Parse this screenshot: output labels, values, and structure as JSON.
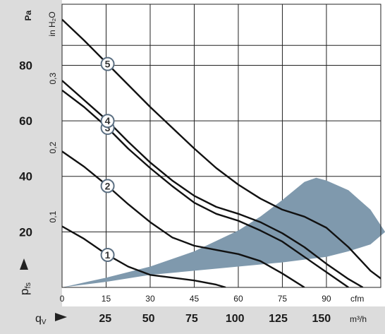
{
  "chart_data": {
    "type": "line",
    "title": "",
    "xlabel": "q_V",
    "ylabel": "p_fs",
    "units": {
      "pressure_left": "Pa",
      "pressure_inner": "in H₂O",
      "flow_inner": "cfm",
      "flow_bottom": "m³/h"
    },
    "xlim_cfm": [
      0,
      108.5
    ],
    "ylim_pa": [
      0,
      102
    ],
    "y_ticks_pa": [
      "20",
      "40",
      "60",
      "80"
    ],
    "y_ticks_inh2o": [
      "0,1",
      "0,2",
      "0,3"
    ],
    "x_ticks_cfm": [
      "0",
      "15",
      "30",
      "45",
      "60",
      "75",
      "90"
    ],
    "x_ticks_m3h": [
      "25",
      "50",
      "75",
      "100",
      "125",
      "150"
    ],
    "grid": true,
    "series": [
      {
        "name": "1",
        "x": [
          0,
          7.5,
          15,
          22.5,
          30,
          37.5,
          45,
          52.5,
          55.7
        ],
        "y": [
          22,
          17.5,
          12,
          7.5,
          4.5,
          3.5,
          2.5,
          1,
          0
        ]
      },
      {
        "name": "2",
        "x": [
          0,
          7.5,
          15,
          22.5,
          30,
          37.5,
          45,
          52.5,
          60,
          67.5,
          75,
          82.5
        ],
        "y": [
          49,
          43.5,
          37,
          30,
          23.5,
          18,
          15,
          13.5,
          12,
          9.5,
          5,
          0
        ]
      },
      {
        "name": "3",
        "x": [
          0,
          7.5,
          15,
          22.5,
          30,
          37.5,
          45,
          52.5,
          60,
          67.5,
          75,
          82.5,
          90,
          97.5
        ],
        "y": [
          71,
          65,
          58,
          50,
          43,
          36.5,
          30.5,
          26.5,
          24,
          20.5,
          16.5,
          11,
          5.5,
          0
        ]
      },
      {
        "name": "4",
        "x": [
          0,
          7.5,
          15,
          22.5,
          30,
          37.5,
          45,
          52.5,
          60,
          67.5,
          75,
          82.5,
          90,
          97.5,
          102.4
        ],
        "y": [
          74.5,
          67.5,
          60.5,
          52.5,
          45,
          38.5,
          33,
          29,
          26.5,
          23.5,
          19.5,
          14.5,
          8.5,
          3,
          0
        ]
      },
      {
        "name": "5",
        "x": [
          0,
          7.5,
          15,
          22.5,
          30,
          37.5,
          45,
          52.5,
          60,
          67.5,
          75,
          82.5,
          90,
          97.5,
          105,
          112.5
        ],
        "y": [
          96.5,
          89,
          81,
          73,
          65,
          57.5,
          50,
          43,
          37,
          32,
          28,
          25.5,
          21.5,
          14.5,
          6,
          0
        ]
      }
    ],
    "operating_region": {
      "upper": {
        "x": [
          0,
          15,
          30,
          45,
          60,
          67.5,
          75,
          82.5,
          86.5,
          90,
          97.5,
          105,
          110
        ],
        "y": [
          0,
          3.5,
          7.5,
          13,
          20.5,
          25.5,
          31.5,
          38,
          39.5,
          38.5,
          35,
          28,
          20
        ]
      },
      "lower": {
        "x": [
          0,
          15,
          30,
          45,
          60,
          75,
          90,
          97.5,
          105,
          110
        ],
        "y": [
          0,
          2,
          4.5,
          6,
          7.5,
          9,
          11,
          13,
          15.5,
          20
        ]
      },
      "color": "#7f99ad"
    },
    "colors": {
      "curve": "#111111",
      "grid": "#222222",
      "band": "#dcdcdc",
      "label_ring": "#5b6f82"
    }
  }
}
